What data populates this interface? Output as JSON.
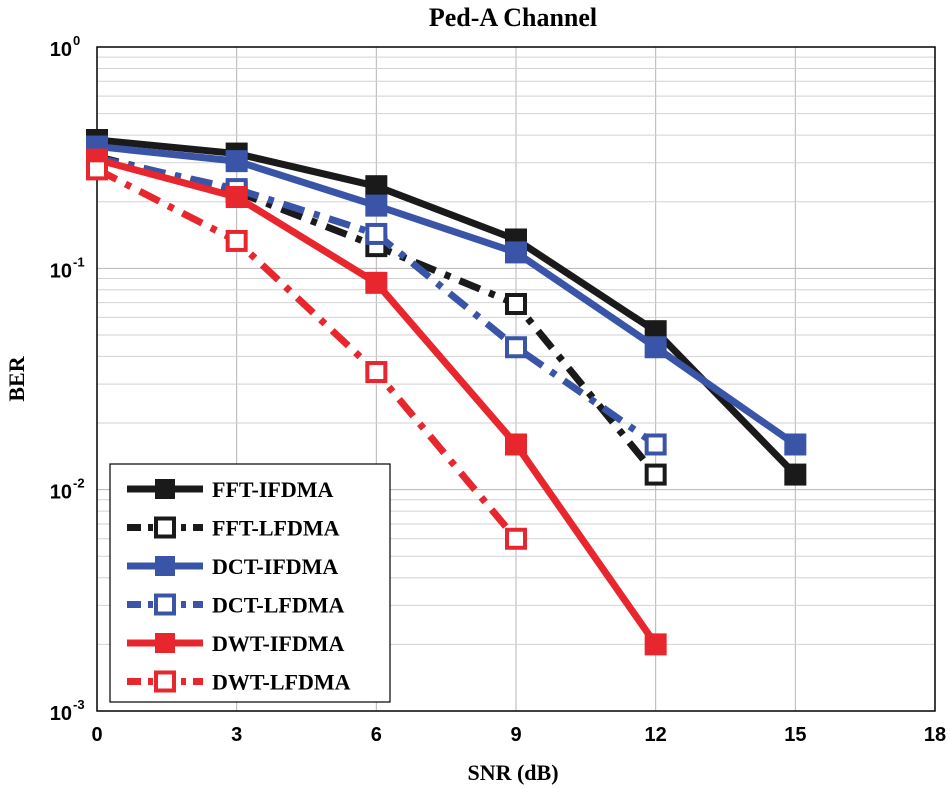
{
  "chart_data": {
    "type": "line",
    "title": "Ped-A Channel",
    "xlabel": "SNR (dB)",
    "ylabel": "BER",
    "yscale": "log",
    "xlim": [
      0,
      18
    ],
    "ylim": [
      0.001,
      1
    ],
    "xticks": [
      0,
      3,
      6,
      9,
      12,
      15,
      18
    ],
    "yticks": [
      {
        "base": "10",
        "exp": "0",
        "value": 1
      },
      {
        "base": "10",
        "exp": "-1",
        "value": 0.1
      },
      {
        "base": "10",
        "exp": "-2",
        "value": 0.01
      },
      {
        "base": "10",
        "exp": "-3",
        "value": 0.001
      }
    ],
    "grid": true,
    "legend_position": "bottom-left",
    "series": [
      {
        "name": "FFT-IFDMA",
        "color": "#1a1a1a",
        "style": "solid",
        "marker": "filled-square",
        "x": [
          0,
          3,
          6,
          9,
          12,
          15
        ],
        "y": [
          0.38,
          0.33,
          0.235,
          0.135,
          0.052,
          0.0117
        ]
      },
      {
        "name": "FFT-LFDMA",
        "color": "#1a1a1a",
        "style": "dashdot",
        "marker": "open-square",
        "x": [
          0,
          3,
          6,
          9,
          12
        ],
        "y": [
          0.32,
          0.222,
          0.126,
          0.069,
          0.0117
        ]
      },
      {
        "name": "DCT-IFDMA",
        "color": "#3a55a8",
        "style": "solid",
        "marker": "filled-square",
        "x": [
          0,
          3,
          6,
          9,
          12,
          15
        ],
        "y": [
          0.355,
          0.305,
          0.192,
          0.118,
          0.044,
          0.016
        ]
      },
      {
        "name": "DCT-LFDMA",
        "color": "#3a55a8",
        "style": "dashdot",
        "marker": "open-square",
        "x": [
          0,
          3,
          6,
          9,
          12
        ],
        "y": [
          0.315,
          0.228,
          0.143,
          0.044,
          0.016
        ]
      },
      {
        "name": "DWT-IFDMA",
        "color": "#e8262e",
        "style": "solid",
        "marker": "filled-square",
        "x": [
          0,
          3,
          6,
          9,
          12
        ],
        "y": [
          0.31,
          0.21,
          0.086,
          0.016,
          0.002
        ]
      },
      {
        "name": "DWT-LFDMA",
        "color": "#e8262e",
        "style": "dashdot",
        "marker": "open-square",
        "x": [
          0,
          3,
          6,
          9
        ],
        "y": [
          0.28,
          0.133,
          0.034,
          0.006
        ]
      }
    ]
  }
}
